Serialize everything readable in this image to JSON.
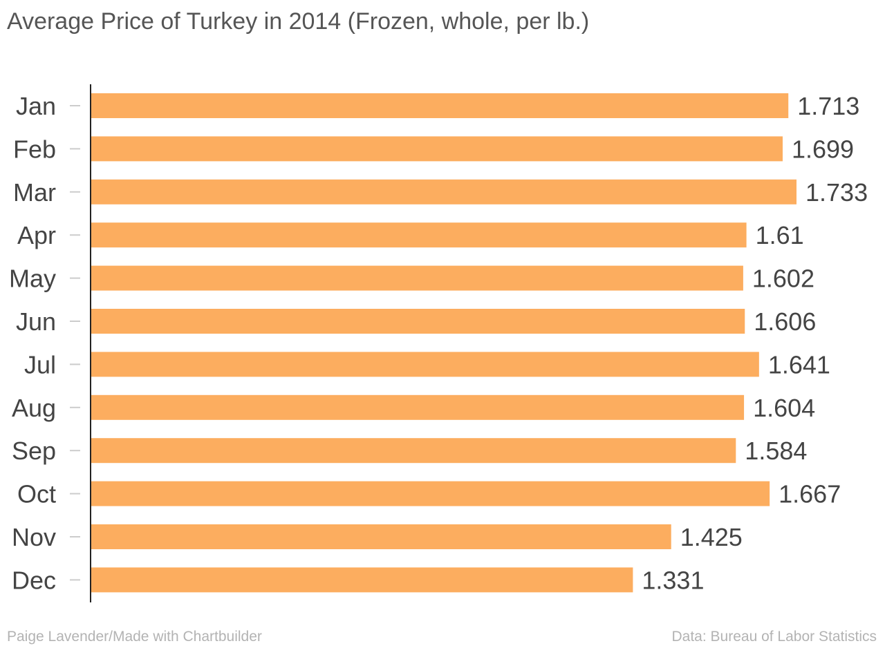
{
  "chart_data": {
    "type": "bar",
    "orientation": "horizontal",
    "title": "Average Price of Turkey in 2014 (Frozen, whole, per lb.)",
    "categories": [
      "Jan",
      "Feb",
      "Mar",
      "Apr",
      "May",
      "Jun",
      "Jul",
      "Aug",
      "Sep",
      "Oct",
      "Nov",
      "Dec"
    ],
    "values": [
      1.713,
      1.699,
      1.733,
      1.61,
      1.602,
      1.606,
      1.641,
      1.604,
      1.584,
      1.667,
      1.425,
      1.331
    ],
    "data_labels": [
      "1.713",
      "1.699",
      "1.733",
      "1.61",
      "1.602",
      "1.606",
      "1.641",
      "1.604",
      "1.584",
      "1.667",
      "1.425",
      "1.331"
    ],
    "xlim": [
      0,
      1.733
    ],
    "grid": false,
    "bar_color": "#fcad5f"
  },
  "footer": {
    "credit": "Paige Lavender/Made with Chartbuilder",
    "source": "Data: Bureau of Labor Statistics"
  }
}
